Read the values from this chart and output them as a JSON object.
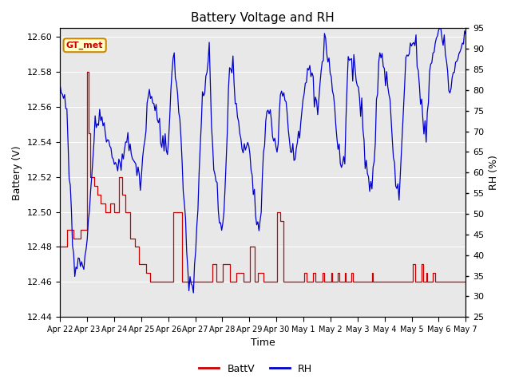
{
  "title": "Battery Voltage and RH",
  "xlabel": "Time",
  "ylabel_left": "Battery (V)",
  "ylabel_right": "RH (%)",
  "annotation": "GT_met",
  "ylim_left": [
    12.44,
    12.605
  ],
  "ylim_right": [
    25,
    95
  ],
  "yticks_left": [
    12.44,
    12.46,
    12.48,
    12.5,
    12.52,
    12.54,
    12.56,
    12.58,
    12.6
  ],
  "yticks_right": [
    25,
    30,
    35,
    40,
    45,
    50,
    55,
    60,
    65,
    70,
    75,
    80,
    85,
    90,
    95
  ],
  "xtick_labels": [
    "Apr 22",
    "Apr 23",
    "Apr 24",
    "Apr 25",
    "Apr 26",
    "Apr 27",
    "Apr 28",
    "Apr 29",
    "Apr 30",
    "May 1",
    "May 2",
    "May 3",
    "May 4",
    "May 5",
    "May 6",
    "May 7"
  ],
  "color_battv": "#cc0000",
  "color_rh": "#0000cc",
  "background_color": "#e8e8e8",
  "plot_bg": "#e8e8e8",
  "legend_labels": [
    "BattV",
    "RH"
  ],
  "annotation_bg": "#ffffcc",
  "annotation_border": "#cc8800",
  "annotation_text_color": "#cc0000",
  "n_days": 15
}
